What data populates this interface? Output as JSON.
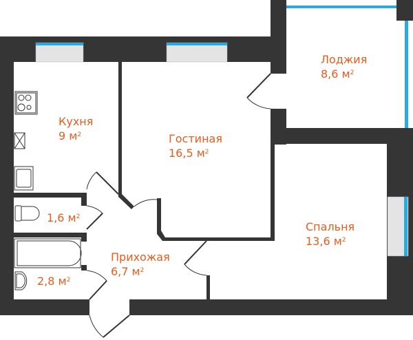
{
  "colors": {
    "wall": "#353535",
    "window_glass": "#29aae1",
    "window_frame": "#e4e4e4",
    "label": "#ea5b1c"
  },
  "unit": "м",
  "unit_power": "2",
  "rooms": [
    {
      "id": "kitchen",
      "name": "Кухня",
      "area": "9"
    },
    {
      "id": "living",
      "name": "Гостиная",
      "area": "16,5"
    },
    {
      "id": "loggia",
      "name": "Лоджия",
      "area": "8,6"
    },
    {
      "id": "bedroom",
      "name": "Спальня",
      "area": "13,6"
    },
    {
      "id": "hallway",
      "name": "Прихожая",
      "area": "6,7"
    },
    {
      "id": "toilet",
      "name": "",
      "area": "1,6"
    },
    {
      "id": "bathroom",
      "name": "",
      "area": "2,8"
    }
  ],
  "fixtures": [
    "stove-icon",
    "vent-shaft-icon",
    "kitchen-sink-icon",
    "toilet-icon",
    "bathtub-icon",
    "washbasin-icon"
  ]
}
